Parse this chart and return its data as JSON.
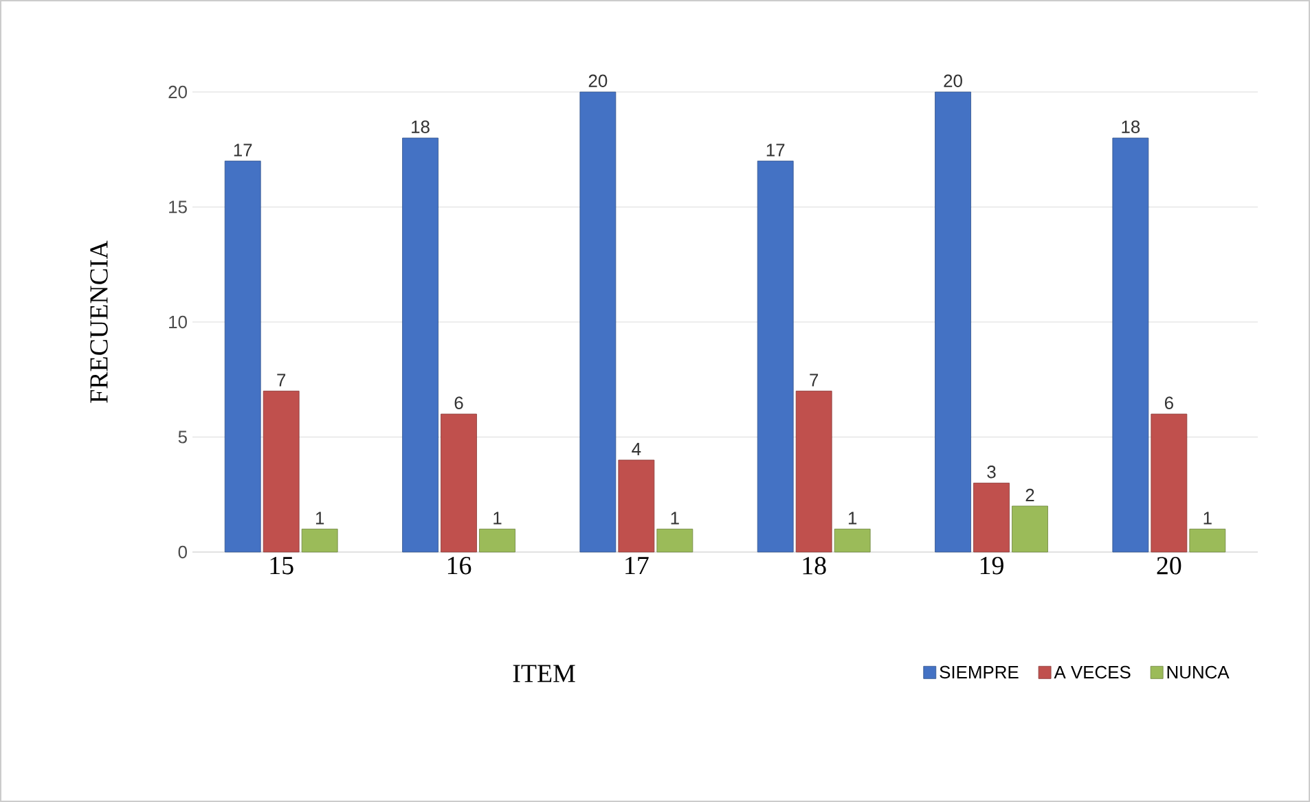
{
  "chart_data": {
    "type": "bar",
    "xlabel": "ITEM",
    "ylabel": "FRECUENCIA",
    "categories": [
      "15",
      "16",
      "17",
      "18",
      "19",
      "20"
    ],
    "series": [
      {
        "name": "SIEMPRE",
        "color": "#4472c4",
        "values": [
          17,
          18,
          20,
          17,
          20,
          18
        ]
      },
      {
        "name": "A VECES",
        "color": "#c0504d",
        "values": [
          7,
          6,
          4,
          7,
          3,
          6
        ]
      },
      {
        "name": "NUNCA",
        "color": "#9bbb59",
        "values": [
          1,
          1,
          1,
          1,
          2,
          1
        ]
      }
    ],
    "ylim": [
      0,
      20
    ],
    "yticks": [
      0,
      5,
      10,
      15,
      20
    ],
    "grid": "y",
    "legend": "bottom",
    "data_labels": true
  }
}
